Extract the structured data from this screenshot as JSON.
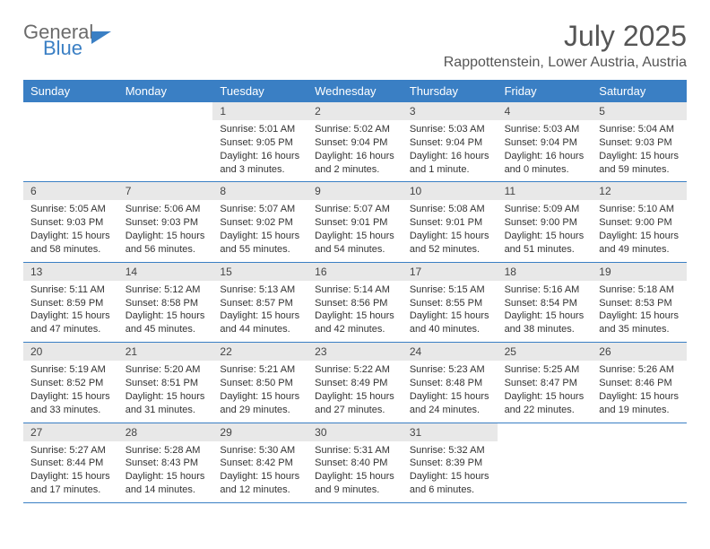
{
  "logo": {
    "line1": "General",
    "line2": "Blue"
  },
  "title": "July 2025",
  "location": "Rappottenstein, Lower Austria, Austria",
  "colors": {
    "header_bg": "#3a7fc4",
    "daynum_bg": "#e8e8e8",
    "text": "#333333",
    "title_text": "#555555"
  },
  "day_names": [
    "Sunday",
    "Monday",
    "Tuesday",
    "Wednesday",
    "Thursday",
    "Friday",
    "Saturday"
  ],
  "weeks": [
    [
      null,
      null,
      {
        "n": "1",
        "sr": "Sunrise: 5:01 AM",
        "ss": "Sunset: 9:05 PM",
        "dl": "Daylight: 16 hours and 3 minutes."
      },
      {
        "n": "2",
        "sr": "Sunrise: 5:02 AM",
        "ss": "Sunset: 9:04 PM",
        "dl": "Daylight: 16 hours and 2 minutes."
      },
      {
        "n": "3",
        "sr": "Sunrise: 5:03 AM",
        "ss": "Sunset: 9:04 PM",
        "dl": "Daylight: 16 hours and 1 minute."
      },
      {
        "n": "4",
        "sr": "Sunrise: 5:03 AM",
        "ss": "Sunset: 9:04 PM",
        "dl": "Daylight: 16 hours and 0 minutes."
      },
      {
        "n": "5",
        "sr": "Sunrise: 5:04 AM",
        "ss": "Sunset: 9:03 PM",
        "dl": "Daylight: 15 hours and 59 minutes."
      }
    ],
    [
      {
        "n": "6",
        "sr": "Sunrise: 5:05 AM",
        "ss": "Sunset: 9:03 PM",
        "dl": "Daylight: 15 hours and 58 minutes."
      },
      {
        "n": "7",
        "sr": "Sunrise: 5:06 AM",
        "ss": "Sunset: 9:03 PM",
        "dl": "Daylight: 15 hours and 56 minutes."
      },
      {
        "n": "8",
        "sr": "Sunrise: 5:07 AM",
        "ss": "Sunset: 9:02 PM",
        "dl": "Daylight: 15 hours and 55 minutes."
      },
      {
        "n": "9",
        "sr": "Sunrise: 5:07 AM",
        "ss": "Sunset: 9:01 PM",
        "dl": "Daylight: 15 hours and 54 minutes."
      },
      {
        "n": "10",
        "sr": "Sunrise: 5:08 AM",
        "ss": "Sunset: 9:01 PM",
        "dl": "Daylight: 15 hours and 52 minutes."
      },
      {
        "n": "11",
        "sr": "Sunrise: 5:09 AM",
        "ss": "Sunset: 9:00 PM",
        "dl": "Daylight: 15 hours and 51 minutes."
      },
      {
        "n": "12",
        "sr": "Sunrise: 5:10 AM",
        "ss": "Sunset: 9:00 PM",
        "dl": "Daylight: 15 hours and 49 minutes."
      }
    ],
    [
      {
        "n": "13",
        "sr": "Sunrise: 5:11 AM",
        "ss": "Sunset: 8:59 PM",
        "dl": "Daylight: 15 hours and 47 minutes."
      },
      {
        "n": "14",
        "sr": "Sunrise: 5:12 AM",
        "ss": "Sunset: 8:58 PM",
        "dl": "Daylight: 15 hours and 45 minutes."
      },
      {
        "n": "15",
        "sr": "Sunrise: 5:13 AM",
        "ss": "Sunset: 8:57 PM",
        "dl": "Daylight: 15 hours and 44 minutes."
      },
      {
        "n": "16",
        "sr": "Sunrise: 5:14 AM",
        "ss": "Sunset: 8:56 PM",
        "dl": "Daylight: 15 hours and 42 minutes."
      },
      {
        "n": "17",
        "sr": "Sunrise: 5:15 AM",
        "ss": "Sunset: 8:55 PM",
        "dl": "Daylight: 15 hours and 40 minutes."
      },
      {
        "n": "18",
        "sr": "Sunrise: 5:16 AM",
        "ss": "Sunset: 8:54 PM",
        "dl": "Daylight: 15 hours and 38 minutes."
      },
      {
        "n": "19",
        "sr": "Sunrise: 5:18 AM",
        "ss": "Sunset: 8:53 PM",
        "dl": "Daylight: 15 hours and 35 minutes."
      }
    ],
    [
      {
        "n": "20",
        "sr": "Sunrise: 5:19 AM",
        "ss": "Sunset: 8:52 PM",
        "dl": "Daylight: 15 hours and 33 minutes."
      },
      {
        "n": "21",
        "sr": "Sunrise: 5:20 AM",
        "ss": "Sunset: 8:51 PM",
        "dl": "Daylight: 15 hours and 31 minutes."
      },
      {
        "n": "22",
        "sr": "Sunrise: 5:21 AM",
        "ss": "Sunset: 8:50 PM",
        "dl": "Daylight: 15 hours and 29 minutes."
      },
      {
        "n": "23",
        "sr": "Sunrise: 5:22 AM",
        "ss": "Sunset: 8:49 PM",
        "dl": "Daylight: 15 hours and 27 minutes."
      },
      {
        "n": "24",
        "sr": "Sunrise: 5:23 AM",
        "ss": "Sunset: 8:48 PM",
        "dl": "Daylight: 15 hours and 24 minutes."
      },
      {
        "n": "25",
        "sr": "Sunrise: 5:25 AM",
        "ss": "Sunset: 8:47 PM",
        "dl": "Daylight: 15 hours and 22 minutes."
      },
      {
        "n": "26",
        "sr": "Sunrise: 5:26 AM",
        "ss": "Sunset: 8:46 PM",
        "dl": "Daylight: 15 hours and 19 minutes."
      }
    ],
    [
      {
        "n": "27",
        "sr": "Sunrise: 5:27 AM",
        "ss": "Sunset: 8:44 PM",
        "dl": "Daylight: 15 hours and 17 minutes."
      },
      {
        "n": "28",
        "sr": "Sunrise: 5:28 AM",
        "ss": "Sunset: 8:43 PM",
        "dl": "Daylight: 15 hours and 14 minutes."
      },
      {
        "n": "29",
        "sr": "Sunrise: 5:30 AM",
        "ss": "Sunset: 8:42 PM",
        "dl": "Daylight: 15 hours and 12 minutes."
      },
      {
        "n": "30",
        "sr": "Sunrise: 5:31 AM",
        "ss": "Sunset: 8:40 PM",
        "dl": "Daylight: 15 hours and 9 minutes."
      },
      {
        "n": "31",
        "sr": "Sunrise: 5:32 AM",
        "ss": "Sunset: 8:39 PM",
        "dl": "Daylight: 15 hours and 6 minutes."
      },
      null,
      null
    ]
  ]
}
